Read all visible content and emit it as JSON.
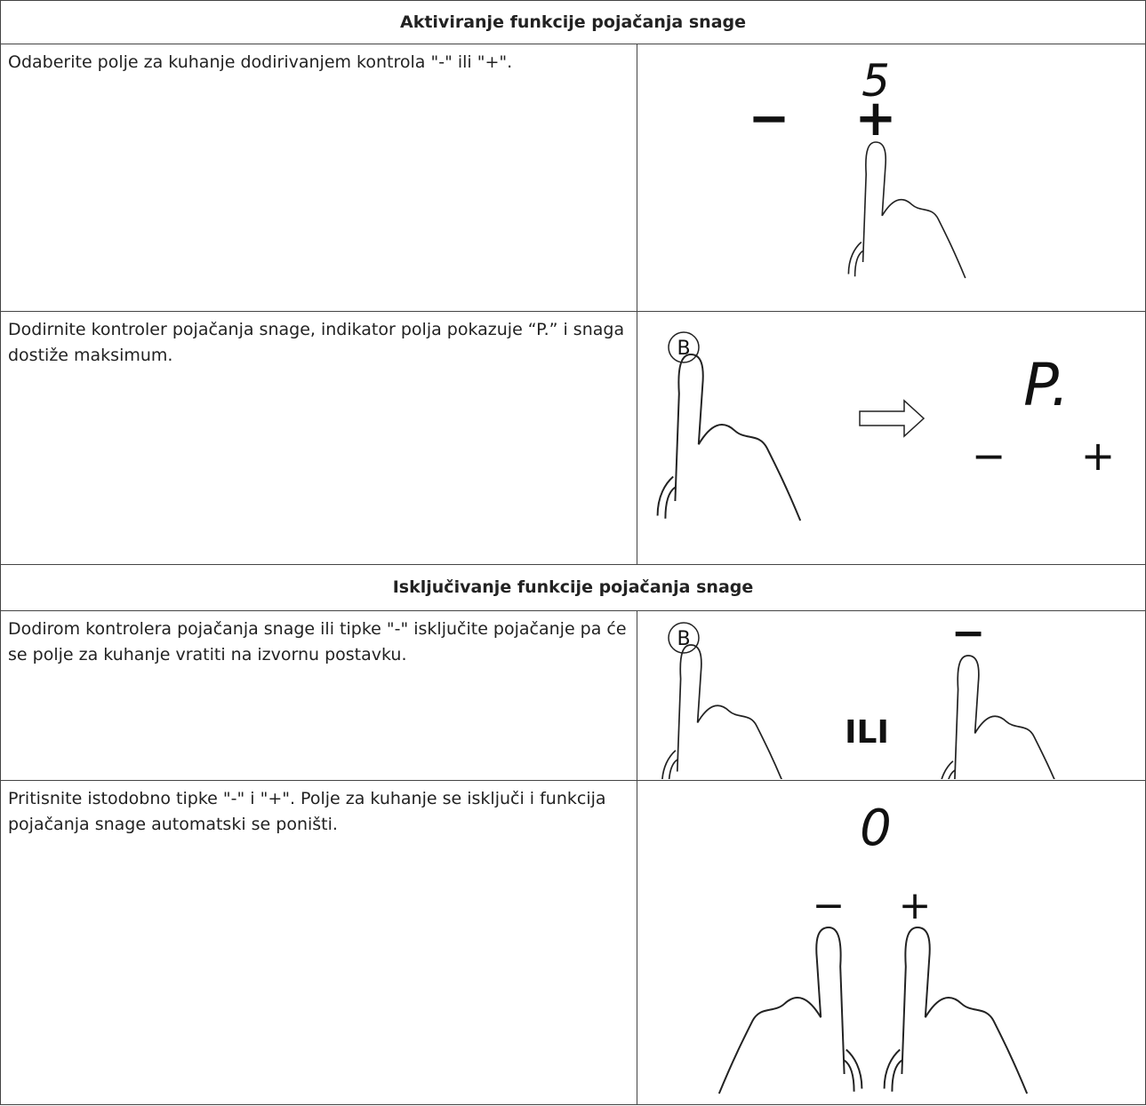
{
  "sections": [
    {
      "title": "Aktiviranje funkcije pojačanja snage",
      "rows": [
        {
          "text": "Odaberite polje za kuhanje dodirivanjem kontrola \"-\" ili \"+\".",
          "figure": {
            "labels": [
              "5",
              "−",
              "+"
            ]
          }
        },
        {
          "text": "Dodirnite kontroler pojačanja snage, indikator polja pokazuje “P.” i snaga dostiže maksimum.",
          "figure": {
            "labels": [
              "B",
              "P.",
              "−",
              "+"
            ]
          }
        }
      ]
    },
    {
      "title": "Isključivanje funkcije pojačanja snage",
      "rows": [
        {
          "text": "Dodirom kontrolera pojačanja snage ili tipke \"-\" isključite pojačanje pa će se polje za kuhanje vratiti na izvornu postavku.",
          "figure": {
            "labels": [
              "B",
              "ILI",
              "−"
            ]
          }
        },
        {
          "text": "Pritisnite istodobno tipke \"-\" i \"+\". Polje za kuhanje se isključi i funkcija pojačanja snage automatski se poništi.",
          "figure": {
            "labels": [
              "0",
              "−",
              "+"
            ]
          }
        }
      ]
    }
  ]
}
